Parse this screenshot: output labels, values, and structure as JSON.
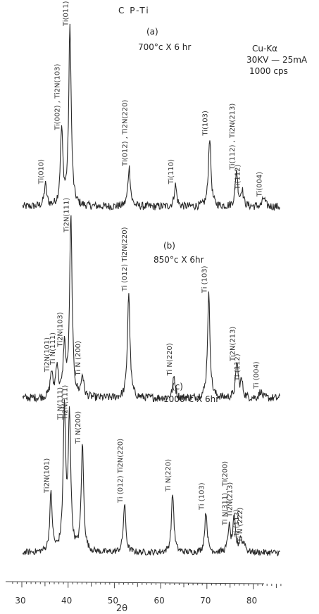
{
  "figure": {
    "material": "C P-Ti",
    "xray_source": "Cu-Kα",
    "xray_power": "30KV — 25mA",
    "count_rate": "1000 cps"
  },
  "chart_data": [
    {
      "type": "line",
      "panel_label": "(a)",
      "condition": "700°c X 6 hr",
      "peaks": [
        {
          "x": 35.1,
          "intensity": 12,
          "label": "Ti(010)"
        },
        {
          "x": 38.6,
          "intensity": 42,
          "label": "Ti(002) , Ti2N(103)"
        },
        {
          "x": 40.4,
          "intensity": 100,
          "label": "Ti(011)"
        },
        {
          "x": 53.2,
          "intensity": 22,
          "label": "Ti(012) , Ti2N(220)"
        },
        {
          "x": 63.2,
          "intensity": 12,
          "label": "Ti(110)"
        },
        {
          "x": 70.6,
          "intensity": 39,
          "label": "Ti(103)"
        },
        {
          "x": 76.4,
          "intensity": 20,
          "label": "Ti(112) , Ti2N(213)"
        },
        {
          "x": 77.6,
          "intensity": 9,
          "label": "Ti(112)"
        },
        {
          "x": 82.3,
          "intensity": 5,
          "label": "Ti(004)"
        }
      ]
    },
    {
      "type": "line",
      "panel_label": "(b)",
      "condition": "850°c X 6hr",
      "peaks": [
        {
          "x": 36.4,
          "intensity": 14,
          "label": "Ti2N(101)"
        },
        {
          "x": 37.6,
          "intensity": 18,
          "label": "Ti N(111)"
        },
        {
          "x": 39.2,
          "intensity": 28,
          "label": "Ti2N(103)"
        },
        {
          "x": 40.6,
          "intensity": 100,
          "label": "Ti2N(111)"
        },
        {
          "x": 43.1,
          "intensity": 12,
          "label": "Ti N (200)"
        },
        {
          "x": 53.1,
          "intensity": 59,
          "label": "Ti (012) Ti2N(220)"
        },
        {
          "x": 62.9,
          "intensity": 12,
          "label": "Ti N(220)"
        },
        {
          "x": 70.4,
          "intensity": 58,
          "label": "Ti (103)"
        },
        {
          "x": 76.5,
          "intensity": 20,
          "label": "Ti2N(213)"
        },
        {
          "x": 77.5,
          "intensity": 9,
          "label": "Ti (112)"
        },
        {
          "x": 81.6,
          "intensity": 4,
          "label": "Ti (004)"
        }
      ]
    },
    {
      "type": "line",
      "panel_label": "(c)",
      "condition": "1000°c X 6hr",
      "peaks": [
        {
          "x": 36.3,
          "intensity": 41,
          "label": "Ti2N(101)"
        },
        {
          "x": 39.2,
          "intensity": 100,
          "label": "Ti N(111)"
        },
        {
          "x": 40.3,
          "intensity": 96,
          "label": "Ti2N(111)"
        },
        {
          "x": 43.1,
          "intensity": 76,
          "label": "Ti N(200)"
        },
        {
          "x": 52.2,
          "intensity": 34,
          "label": "Ti (012) Ti2N(220)"
        },
        {
          "x": 62.6,
          "intensity": 42,
          "label": "Ti N(220)"
        },
        {
          "x": 69.8,
          "intensity": 29,
          "label": "Ti (103)"
        },
        {
          "x": 74.8,
          "intensity": 18,
          "label": "Ti N(311) , Ti(200)"
        },
        {
          "x": 75.9,
          "intensity": 24,
          "label": "Ti2N(213)"
        },
        {
          "x": 77.3,
          "intensity": 10,
          "label": "Ti (112)"
        },
        {
          "x": 78.1,
          "intensity": 6,
          "label": "Ti N (222)"
        }
      ]
    }
  ],
  "axis": {
    "xlabel": "2θ",
    "xlim": [
      28,
      87
    ],
    "ticks": [
      30,
      40,
      50,
      60,
      70,
      80
    ],
    "tick_labels": [
      "30",
      "40",
      "50",
      "60",
      "70",
      "80"
    ]
  }
}
